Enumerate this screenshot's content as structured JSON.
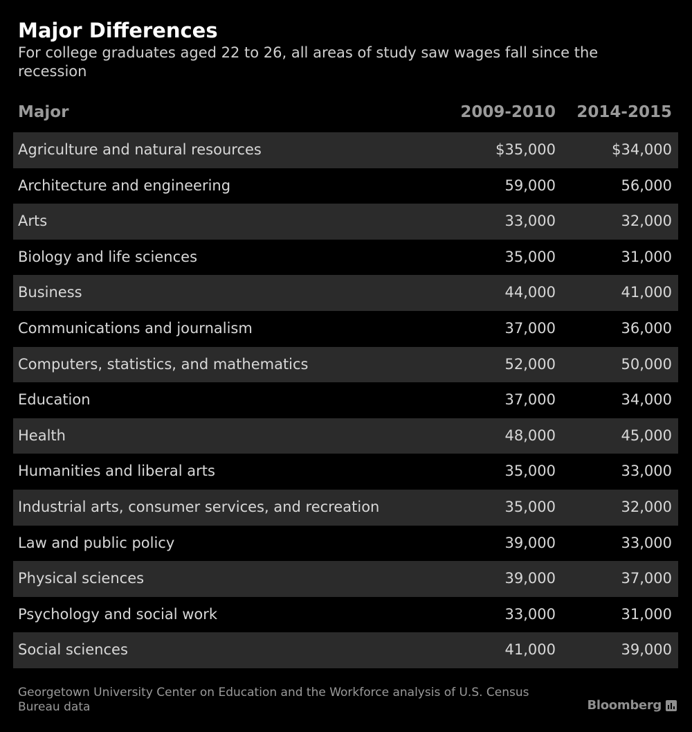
{
  "chart_data": {
    "type": "table",
    "title": "Major Differences",
    "subtitle": "For college graduates aged 22 to 26, all areas of study saw wages fall since the recession",
    "columns": [
      "Major",
      "2009-2010",
      "2014-2015"
    ],
    "rows": [
      {
        "major": "Agriculture and natural resources",
        "y2009_2010": "$35,000",
        "y2014_2015": "$34,000"
      },
      {
        "major": "Architecture and engineering",
        "y2009_2010": "59,000",
        "y2014_2015": "56,000"
      },
      {
        "major": "Arts",
        "y2009_2010": "33,000",
        "y2014_2015": "32,000"
      },
      {
        "major": "Biology and life sciences",
        "y2009_2010": "35,000",
        "y2014_2015": "31,000"
      },
      {
        "major": "Business",
        "y2009_2010": "44,000",
        "y2014_2015": "41,000"
      },
      {
        "major": "Communications and journalism",
        "y2009_2010": "37,000",
        "y2014_2015": "36,000"
      },
      {
        "major": "Computers, statistics, and mathematics",
        "y2009_2010": "52,000",
        "y2014_2015": "50,000"
      },
      {
        "major": "Education",
        "y2009_2010": "37,000",
        "y2014_2015": "34,000"
      },
      {
        "major": "Health",
        "y2009_2010": "48,000",
        "y2014_2015": "45,000"
      },
      {
        "major": "Humanities and liberal arts",
        "y2009_2010": "35,000",
        "y2014_2015": "33,000"
      },
      {
        "major": "Industrial arts, consumer services, and recreation",
        "y2009_2010": "35,000",
        "y2014_2015": "32,000"
      },
      {
        "major": "Law and public policy",
        "y2009_2010": "39,000",
        "y2014_2015": "33,000"
      },
      {
        "major": "Physical sciences",
        "y2009_2010": "39,000",
        "y2014_2015": "37,000"
      },
      {
        "major": "Psychology and social work",
        "y2009_2010": "33,000",
        "y2014_2015": "31,000"
      },
      {
        "major": "Social sciences",
        "y2009_2010": "41,000",
        "y2014_2015": "39,000"
      }
    ],
    "source": "Georgetown University Center on Education and the Workforce analysis of U.S. Census Bureau data"
  },
  "brand": {
    "name": "Bloomberg",
    "icon": "bloomberg-chart-icon"
  },
  "colors": {
    "background": "#000000",
    "stripe": "#2b2b2b",
    "title": "#ffffff",
    "text": "#d8d8d8",
    "muted": "#9a9a9a"
  }
}
